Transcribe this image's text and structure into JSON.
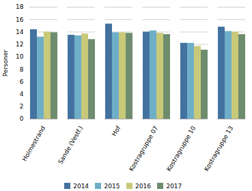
{
  "chart_data": {
    "type": "bar",
    "categories": [
      "Holmestrand",
      "Sande (Vestf.)",
      "Hof",
      "Kostragruppe 07",
      "Kostragruppe 10",
      "Kostragruppe 13"
    ],
    "series": [
      {
        "name": "2014",
        "color": "#4472a0",
        "values": [
          14.4,
          13.5,
          15.3,
          14.0,
          12.2,
          14.8
        ]
      },
      {
        "name": "2015",
        "color": "#6eafc7",
        "values": [
          13.2,
          13.4,
          13.9,
          14.2,
          12.2,
          14.1
        ]
      },
      {
        "name": "2016",
        "color": "#c9c97a",
        "values": [
          14.0,
          13.7,
          13.9,
          13.8,
          11.7,
          14.0
        ]
      },
      {
        "name": "2017",
        "color": "#6e8c6e",
        "values": [
          13.9,
          12.8,
          13.8,
          13.6,
          11.1,
          13.6
        ]
      }
    ],
    "ylabel": "Personer",
    "ylim": [
      0,
      18
    ],
    "yticks": [
      0,
      2,
      4,
      6,
      8,
      10,
      12,
      14,
      16,
      18
    ],
    "grid": true,
    "legend": "bottom"
  }
}
